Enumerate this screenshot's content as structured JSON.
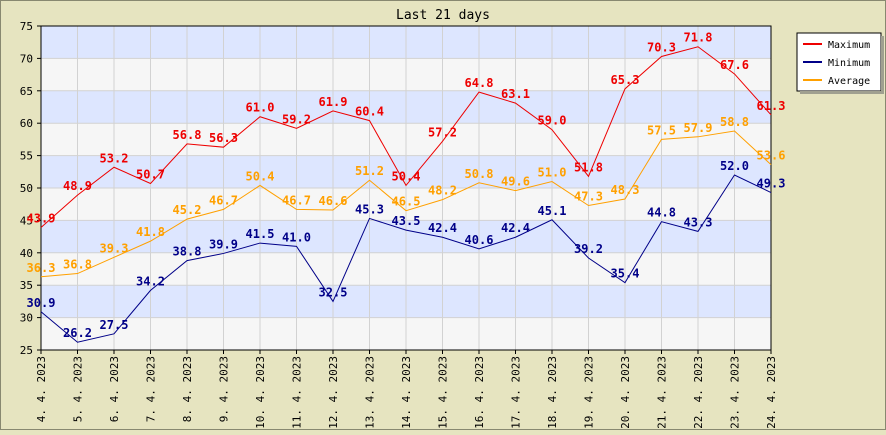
{
  "chart_data": {
    "type": "line",
    "title": "Last 21 days",
    "xlabel": "",
    "ylabel": "",
    "ylim": [
      25,
      75
    ],
    "yticks": [
      25,
      30,
      35,
      40,
      45,
      50,
      55,
      60,
      65,
      70,
      75
    ],
    "grid": true,
    "legend_position": "top-right",
    "categories": [
      "4. 4. 2023",
      "5. 4. 2023",
      "6. 4. 2023",
      "7. 4. 2023",
      "8. 4. 2023",
      "9. 4. 2023",
      "10. 4. 2023",
      "11. 4. 2023",
      "12. 4. 2023",
      "13. 4. 2023",
      "14. 4. 2023",
      "15. 4. 2023",
      "16. 4. 2023",
      "17. 4. 2023",
      "18. 4. 2023",
      "19. 4. 2023",
      "20. 4. 2023",
      "21. 4. 2023",
      "22. 4. 2023",
      "23. 4. 2023",
      "24. 4. 2023"
    ],
    "series": [
      {
        "name": "Maximum",
        "color": "#ee0000",
        "values": [
          43.9,
          48.9,
          53.2,
          50.7,
          56.8,
          56.3,
          61.0,
          59.2,
          61.9,
          60.4,
          50.4,
          57.2,
          64.8,
          63.1,
          59.0,
          51.8,
          65.3,
          70.3,
          71.8,
          67.6,
          61.3
        ]
      },
      {
        "name": "Minimum",
        "color": "#000088",
        "values": [
          30.9,
          26.2,
          27.5,
          34.2,
          38.8,
          39.9,
          41.5,
          41.0,
          32.5,
          45.3,
          43.5,
          42.4,
          40.6,
          42.4,
          45.1,
          39.2,
          35.4,
          44.8,
          43.3,
          52.0,
          49.3
        ]
      },
      {
        "name": "Average",
        "color": "#ffa000",
        "values": [
          36.3,
          36.8,
          39.3,
          41.8,
          45.2,
          46.7,
          50.4,
          46.7,
          46.6,
          51.2,
          46.5,
          48.2,
          50.8,
          49.6,
          51.0,
          47.3,
          48.3,
          57.5,
          57.9,
          58.8,
          53.6
        ]
      }
    ]
  }
}
